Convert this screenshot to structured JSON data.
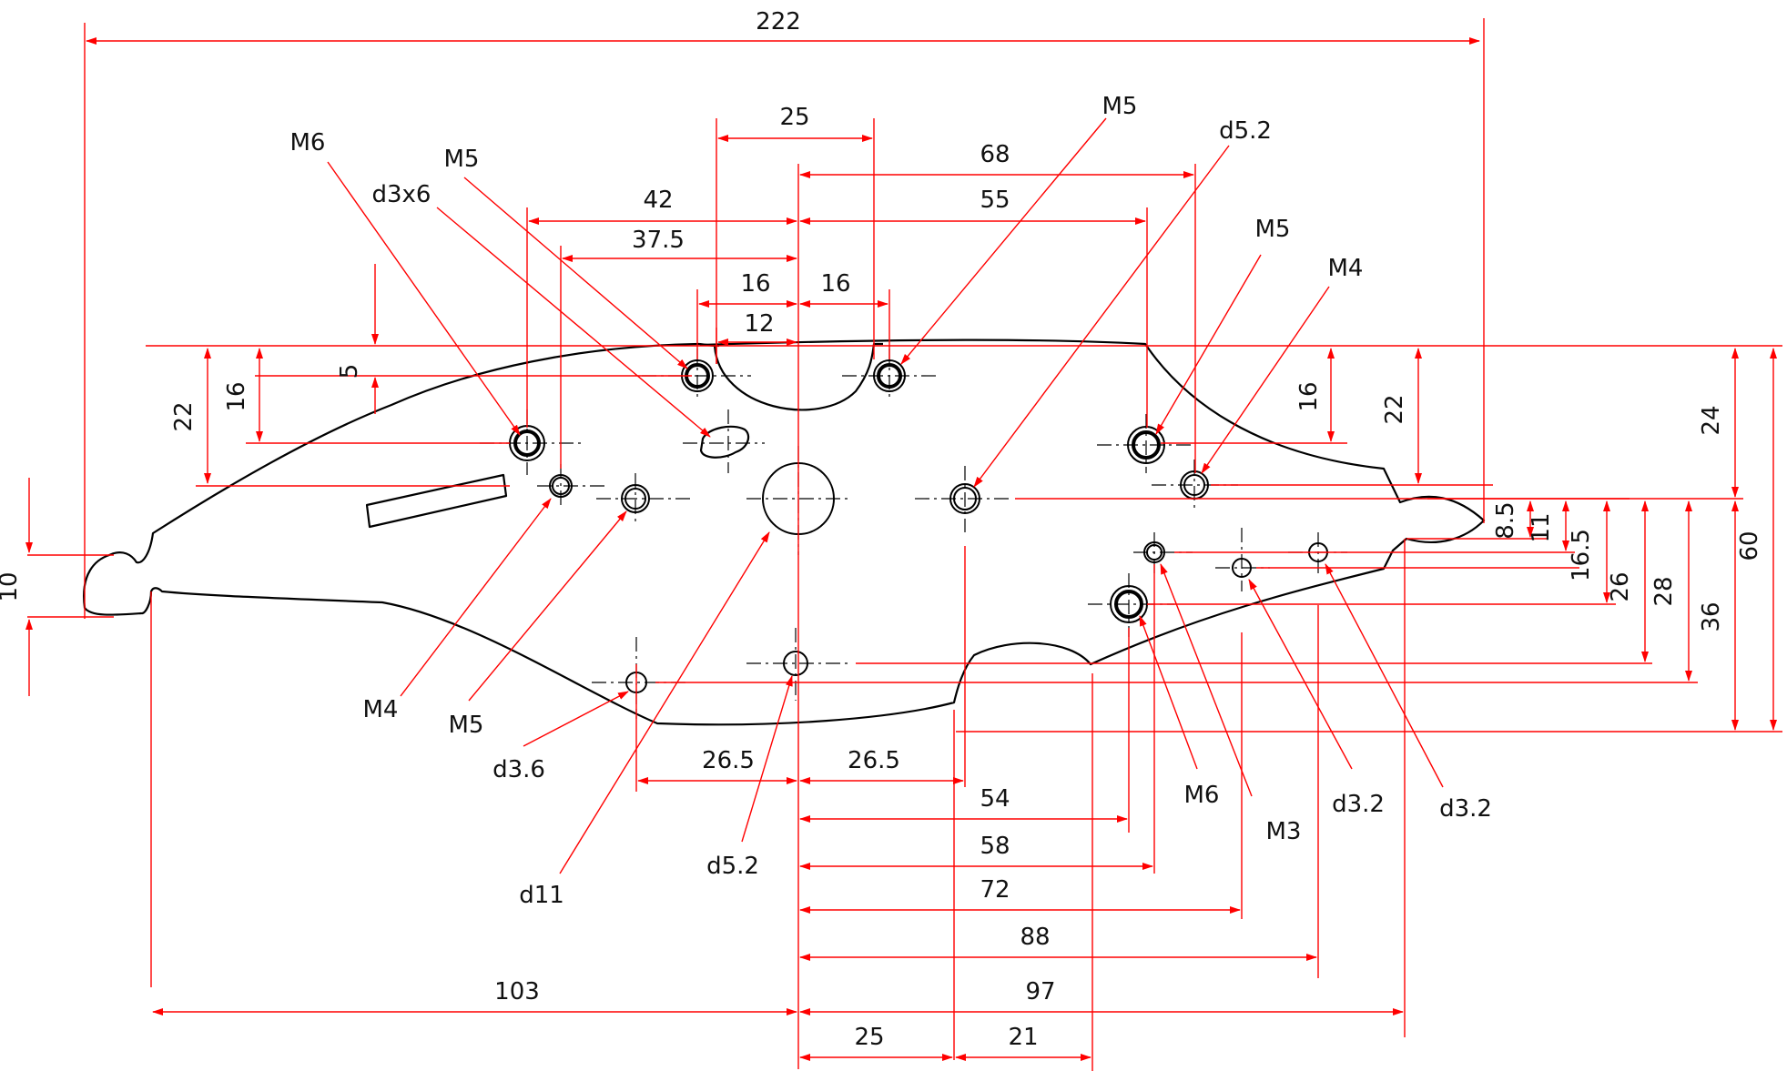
{
  "dimensions": {
    "overall_width": "222",
    "d25_top": "25",
    "d68": "68",
    "d55": "55",
    "d42": "42",
    "d37_5": "37.5",
    "d16_left": "16",
    "d16_right": "16",
    "d12": "12",
    "d5": "5",
    "d22_left": "22",
    "d16_vert_left": "16",
    "d10": "10",
    "d16_vert_right": "16",
    "d22_vert_right": "22",
    "d24": "24",
    "d60": "60",
    "d8_5": "8.5",
    "d11": "11",
    "d16_5": "16.5",
    "d26": "26",
    "d28": "28",
    "d36": "36",
    "d26_5_left": "26.5",
    "d26_5_right": "26.5",
    "d54": "54",
    "d58": "58",
    "d72": "72",
    "d88": "88",
    "d103": "103",
    "d97": "97",
    "d25_bottom": "25",
    "d21": "21"
  },
  "callouts": {
    "m6_top": "M6",
    "m5_top_left": "M5",
    "d3x6": "d3x6",
    "m5_top_right": "M5",
    "d5_2_top": "d5.2",
    "m5_right": "M5",
    "m4_right": "M4",
    "m4_left": "M4",
    "m5_left": "M5",
    "d3_6": "d3.6",
    "d11": "d11",
    "d5_2_bottom": "d5.2",
    "m6_bottom": "M6",
    "m3": "M3",
    "d3_2_a": "d3.2",
    "d3_2_b": "d3.2"
  },
  "colors": {
    "dimension": "#ff0000",
    "part_outline": "#000000"
  }
}
